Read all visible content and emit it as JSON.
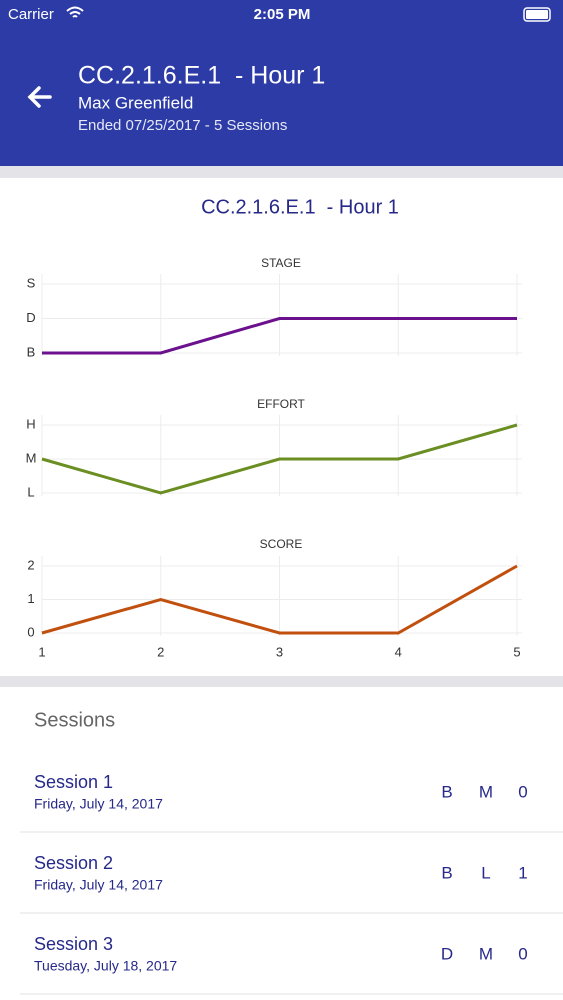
{
  "status_bar": {
    "carrier": "Carrier",
    "time": "2:05 PM"
  },
  "header": {
    "title": "CC.2.1.6.E.1  - Hour 1",
    "subtitle": "Max Greenfield",
    "detail": "Ended 07/25/2017 - 5 Sessions"
  },
  "card": {
    "title": "CC.2.1.6.E.1  - Hour 1"
  },
  "chart_data": [
    {
      "type": "line",
      "title": "STAGE",
      "x": [
        1,
        2,
        3,
        4,
        5
      ],
      "xlim": [
        1,
        5
      ],
      "values": [
        0,
        0,
        1,
        1,
        1
      ],
      "color": "#6c118e",
      "ylim": [
        0,
        2
      ],
      "yticks": [
        {
          "value": 0,
          "label": "B"
        },
        {
          "value": 1,
          "label": "D"
        },
        {
          "value": 2,
          "label": "S"
        }
      ],
      "grid": true
    },
    {
      "type": "line",
      "title": "EFFORT",
      "x": [
        1,
        2,
        3,
        4,
        5
      ],
      "xlim": [
        1,
        5
      ],
      "values": [
        1,
        0,
        1,
        1,
        2
      ],
      "color": "#6b8e23",
      "ylim": [
        0,
        2
      ],
      "yticks": [
        {
          "value": 0,
          "label": "L"
        },
        {
          "value": 1,
          "label": "M"
        },
        {
          "value": 2,
          "label": "H"
        }
      ],
      "grid": true
    },
    {
      "type": "line",
      "title": "SCORE",
      "x": [
        1,
        2,
        3,
        4,
        5
      ],
      "xlim": [
        1,
        5
      ],
      "xticks": [
        1,
        2,
        3,
        4,
        5
      ],
      "values": [
        0,
        1,
        0,
        0,
        2
      ],
      "color": "#c1500f",
      "ylim": [
        0,
        2
      ],
      "yticks": [
        0,
        1,
        2
      ],
      "grid": true
    }
  ],
  "sessions": {
    "heading": "Sessions",
    "items": [
      {
        "name": "Session 1",
        "date": "Friday, July 14, 2017",
        "codes": [
          "B",
          "M",
          "0"
        ]
      },
      {
        "name": "Session 2",
        "date": "Friday, July 14, 2017",
        "codes": [
          "B",
          "L",
          "1"
        ]
      },
      {
        "name": "Session 3",
        "date": "Tuesday, July 18, 2017",
        "codes": [
          "D",
          "M",
          "0"
        ]
      }
    ]
  }
}
